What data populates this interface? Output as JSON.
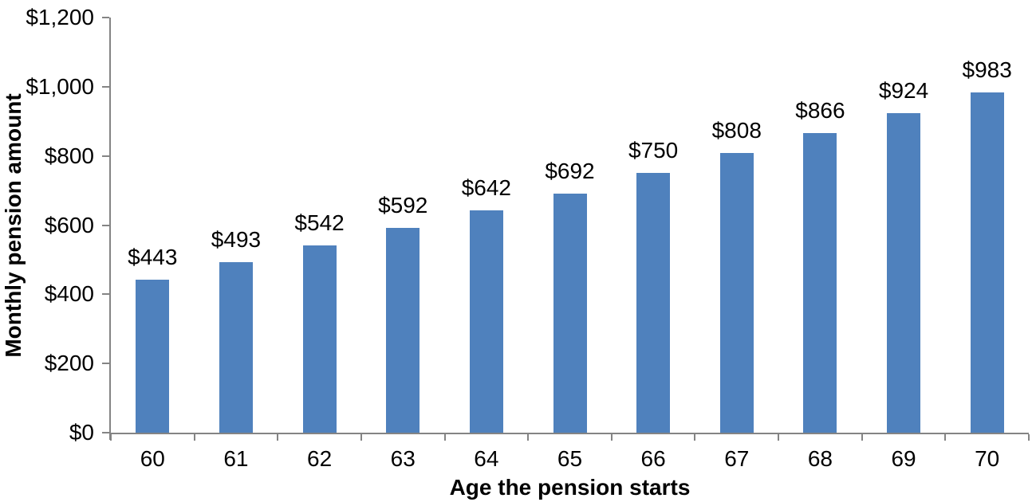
{
  "chart_data": {
    "type": "bar",
    "title": "",
    "xlabel": "Age the pension starts",
    "ylabel": "Monthly pension amount",
    "categories": [
      "60",
      "61",
      "62",
      "63",
      "64",
      "65",
      "66",
      "67",
      "68",
      "69",
      "70"
    ],
    "values": [
      443,
      493,
      542,
      592,
      642,
      692,
      750,
      808,
      866,
      924,
      983
    ],
    "bar_labels": [
      "$443",
      "$493",
      "$542",
      "$592",
      "$642",
      "$692",
      "$750",
      "$808",
      "$866",
      "$924",
      "$983"
    ],
    "y_tick_values": [
      0,
      200,
      400,
      600,
      800,
      1000,
      1200
    ],
    "y_tick_labels": [
      "$0",
      "$200",
      "$400",
      "$600",
      "$800",
      "$1,000",
      "$1,200"
    ],
    "ylim": [
      0,
      1200
    ],
    "grid": "off",
    "legend": "none",
    "colors": {
      "bar": "#4F81BD",
      "axis": "#848484",
      "text": "#000000",
      "background": "#FFFFFF"
    }
  }
}
